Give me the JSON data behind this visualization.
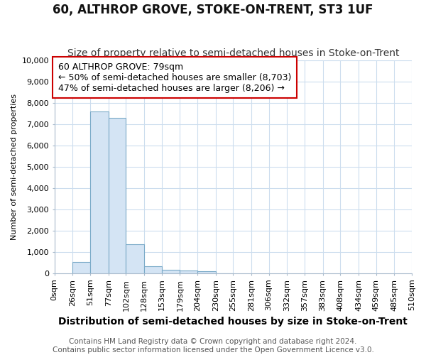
{
  "title": "60, ALTHROP GROVE, STOKE-ON-TRENT, ST3 1UF",
  "subtitle": "Size of property relative to semi-detached houses in Stoke-on-Trent",
  "xlabel": "Distribution of semi-detached houses by size in Stoke-on-Trent",
  "ylabel": "Number of semi-detached properties",
  "footer_line1": "Contains HM Land Registry data © Crown copyright and database right 2024.",
  "footer_line2": "Contains public sector information licensed under the Open Government Licence v3.0.",
  "annotation_title": "60 ALTHROP GROVE: 79sqm",
  "annotation_line1": "← 50% of semi-detached houses are smaller (8,703)",
  "annotation_line2": "47% of semi-detached houses are larger (8,206) →",
  "property_size": 79,
  "bar_left_edges": [
    26,
    51,
    77,
    102,
    128,
    153,
    179,
    204,
    230
  ],
  "bar_widths": [
    25,
    26,
    25,
    26,
    25,
    26,
    25,
    26,
    25
  ],
  "bar_heights": [
    550,
    7600,
    7300,
    1350,
    350,
    175,
    125,
    100,
    0
  ],
  "tick_labels": [
    "0sqm",
    "26sqm",
    "51sqm",
    "77sqm",
    "102sqm",
    "128sqm",
    "153sqm",
    "179sqm",
    "204sqm",
    "230sqm",
    "255sqm",
    "281sqm",
    "306sqm",
    "332sqm",
    "357sqm",
    "383sqm",
    "408sqm",
    "434sqm",
    "459sqm",
    "485sqm",
    "510sqm"
  ],
  "tick_positions": [
    0,
    26,
    51,
    77,
    102,
    128,
    153,
    179,
    204,
    230,
    255,
    281,
    306,
    332,
    357,
    383,
    408,
    434,
    459,
    485,
    510
  ],
  "bar_color": "#d4e4f4",
  "bar_edge_color": "#7aaac8",
  "annotation_box_color": "#ffffff",
  "annotation_box_edge": "#cc0000",
  "ylim": [
    0,
    10000
  ],
  "xlim": [
    0,
    510
  ],
  "bg_color": "#ffffff",
  "plot_bg_color": "#ffffff",
  "grid_color": "#ccddee",
  "title_fontsize": 12,
  "subtitle_fontsize": 10,
  "xlabel_fontsize": 10,
  "ylabel_fontsize": 8,
  "tick_fontsize": 8,
  "footer_fontsize": 7.5,
  "annotation_fontsize": 9
}
